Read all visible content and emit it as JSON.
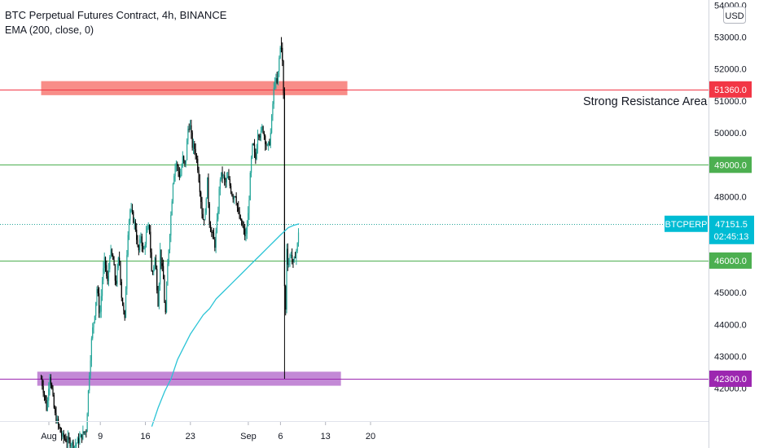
{
  "legend": {
    "title": "BTC Perpetual Futures Contract, 4h, BINANCE",
    "indicator": "EMA (200, close, 0)"
  },
  "colors": {
    "up": "#26a69a",
    "down": "#000000",
    "ema": "#2bc4d6",
    "support_line": "#4caf50",
    "support_label": "#4caf50",
    "resistance_line": "#f23645",
    "resistance_zone": "#f88d88",
    "resistance_label": "#f23645",
    "bottom_zone": "#c389d6",
    "bottom_line": "#9c27b0",
    "bottom_label": "#9c27b0",
    "last_price_label": "#00bcd4",
    "last_price_line": "#26a69a"
  },
  "chart_data": {
    "type": "candlestick",
    "title": "BTC Perpetual Futures Contract, 4h, BINANCE",
    "currency": "USD",
    "ylim": [
      41000,
      54000
    ],
    "y_ticks": [
      42000,
      43000,
      44000,
      45000,
      46000,
      47000,
      48000,
      49000,
      50000,
      51000,
      52000,
      53000,
      54000
    ],
    "y_tick_labels": [
      "42000.0",
      "43000.0",
      "44000.0",
      "45000.0",
      "46000.0",
      "47000.0",
      "48000.0",
      "49000.0",
      "50000.0",
      "51000.0",
      "52000.0",
      "53000.0",
      "54000.0"
    ],
    "x_ticks": [
      {
        "day": 1,
        "label": "Aug"
      },
      {
        "day": 9,
        "label": "9"
      },
      {
        "day": 16,
        "label": "16"
      },
      {
        "day": 23,
        "label": "23"
      },
      {
        "day": 32,
        "label": "Sep"
      },
      {
        "day": 37,
        "label": "6"
      },
      {
        "day": 44,
        "label": "13"
      },
      {
        "day": 51,
        "label": "20"
      }
    ],
    "close_path": [
      [
        -0.2,
        42300
      ],
      [
        0.3,
        41800
      ],
      [
        0.7,
        41300
      ],
      [
        1.1,
        42500
      ],
      [
        1.5,
        41900
      ],
      [
        1.9,
        41200
      ],
      [
        3.0,
        40500
      ],
      [
        5.0,
        40200
      ],
      [
        6.8,
        40700
      ],
      [
        7.3,
        42500
      ],
      [
        7.7,
        43700
      ],
      [
        8.1,
        44300
      ],
      [
        8.5,
        45200
      ],
      [
        8.9,
        44200
      ],
      [
        9.3,
        45400
      ],
      [
        9.7,
        46100
      ],
      [
        10.1,
        45200
      ],
      [
        10.5,
        46300
      ],
      [
        11.0,
        46000
      ],
      [
        11.4,
        45200
      ],
      [
        11.9,
        46200
      ],
      [
        12.3,
        44900
      ],
      [
        12.8,
        44100
      ],
      [
        13.2,
        46700
      ],
      [
        13.6,
        47600
      ],
      [
        14.0,
        47400
      ],
      [
        14.5,
        47000
      ],
      [
        14.9,
        46200
      ],
      [
        15.3,
        46800
      ],
      [
        15.7,
        46200
      ],
      [
        16.1,
        46800
      ],
      [
        16.6,
        47100
      ],
      [
        17.0,
        45500
      ],
      [
        17.5,
        46100
      ],
      [
        18.0,
        44600
      ],
      [
        18.3,
        46300
      ],
      [
        18.8,
        45400
      ],
      [
        19.1,
        44200
      ],
      [
        19.5,
        46000
      ],
      [
        19.9,
        47200
      ],
      [
        20.3,
        48500
      ],
      [
        20.7,
        49100
      ],
      [
        21.0,
        48900
      ],
      [
        21.4,
        48600
      ],
      [
        21.8,
        49200
      ],
      [
        22.2,
        48900
      ],
      [
        22.6,
        50100
      ],
      [
        22.9,
        50300
      ],
      [
        23.3,
        49600
      ],
      [
        23.7,
        49500
      ],
      [
        24.1,
        49000
      ],
      [
        24.5,
        48200
      ],
      [
        24.9,
        47300
      ],
      [
        25.3,
        47400
      ],
      [
        25.6,
        48600
      ],
      [
        26.0,
        47100
      ],
      [
        26.4,
        46800
      ],
      [
        26.8,
        46500
      ],
      [
        27.2,
        47300
      ],
      [
        27.6,
        48600
      ],
      [
        28.0,
        48700
      ],
      [
        28.4,
        48400
      ],
      [
        28.8,
        48600
      ],
      [
        29.2,
        48300
      ],
      [
        29.6,
        48000
      ],
      [
        30.0,
        48100
      ],
      [
        30.4,
        47500
      ],
      [
        30.8,
        47200
      ],
      [
        31.2,
        47000
      ],
      [
        31.6,
        46700
      ],
      [
        32.0,
        47500
      ],
      [
        32.4,
        49000
      ],
      [
        32.7,
        49700
      ],
      [
        33.1,
        49100
      ],
      [
        33.5,
        50100
      ],
      [
        33.9,
        49900
      ],
      [
        34.2,
        50200
      ],
      [
        34.6,
        49800
      ],
      [
        35.0,
        49500
      ],
      [
        35.4,
        49800
      ],
      [
        35.8,
        50900
      ],
      [
        36.1,
        51700
      ],
      [
        36.5,
        51500
      ],
      [
        36.9,
        52600
      ],
      [
        37.2,
        52800
      ],
      [
        37.5,
        51000
      ],
      [
        37.7,
        42300
      ],
      [
        37.9,
        46600
      ],
      [
        38.2,
        45800
      ],
      [
        38.6,
        46300
      ],
      [
        39.0,
        45800
      ],
      [
        39.3,
        46200
      ],
      [
        39.6,
        46400
      ],
      [
        39.9,
        47200
      ]
    ],
    "ema_path": [
      [
        17.0,
        40800
      ],
      [
        18.0,
        41400
      ],
      [
        19.0,
        41900
      ],
      [
        20.0,
        42300
      ],
      [
        21.0,
        42900
      ],
      [
        22.0,
        43300
      ],
      [
        23.0,
        43700
      ],
      [
        24.0,
        44000
      ],
      [
        25.0,
        44300
      ],
      [
        26.0,
        44500
      ],
      [
        27.0,
        44800
      ],
      [
        28.0,
        45000
      ],
      [
        29.0,
        45200
      ],
      [
        30.0,
        45400
      ],
      [
        31.0,
        45600
      ],
      [
        32.0,
        45800
      ],
      [
        33.0,
        46000
      ],
      [
        34.0,
        46200
      ],
      [
        35.0,
        46400
      ],
      [
        36.0,
        46600
      ],
      [
        37.0,
        46800
      ],
      [
        37.7,
        46930
      ],
      [
        38.2,
        47030
      ],
      [
        39.0,
        47100
      ],
      [
        39.9,
        47150
      ]
    ],
    "levels": [
      {
        "price": 51360.0,
        "label": "51360.0",
        "kind": "resistance"
      },
      {
        "price": 49000.0,
        "label": "49000.0",
        "kind": "support"
      },
      {
        "price": 46000.0,
        "label": "46000.0",
        "kind": "support"
      },
      {
        "price": 42300.0,
        "label": "42300.0",
        "kind": "bottom"
      }
    ],
    "zones": [
      {
        "kind": "resistance",
        "from_price": 51180,
        "to_price": 51620,
        "from_day": -0.2,
        "to_day": 47.4
      },
      {
        "kind": "bottom",
        "from_price": 42080,
        "to_price": 42520,
        "from_day": -0.8,
        "to_day": 46.4
      }
    ],
    "annotation": "Strong Resistance Area",
    "last_price": {
      "symbol": "BTCPERP",
      "price": 47151.5,
      "price_label": "47151.5",
      "countdown": "02:45:13"
    }
  }
}
